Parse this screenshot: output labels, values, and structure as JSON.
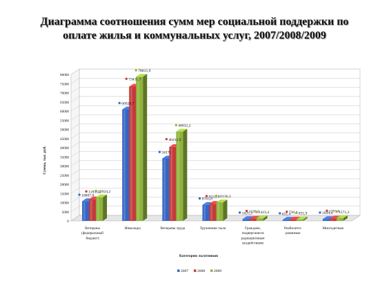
{
  "page": {
    "title_line1": "Диаграмма соотношения сумм мер социальной поддержки по",
    "title_line2": "оплате жилья и коммунальных услуг, 2007/2008/2009"
  },
  "chart_data": {
    "type": "bar",
    "title": "Диаграмма соотношения сумм мер социальной поддержки по оплате жилья и коммунальных услуг, 2007/2008/2009",
    "xlabel": "Категории льготников",
    "ylabel": "Сумма, тыс. руб.",
    "ylim": [
      0,
      80000
    ],
    "yticks": [
      "0",
      "5000",
      "10000",
      "15000",
      "20000",
      "25000",
      "30000",
      "35000",
      "40000",
      "45000",
      "50000",
      "55000",
      "60000",
      "65000",
      "70000",
      "75000",
      "80000"
    ],
    "grid": true,
    "legend_position": "bottom",
    "style": "3d clustered column",
    "categories": [
      [
        "Ветераны",
        "(федеральный",
        "бюджет)"
      ],
      [
        "Инвалиды"
      ],
      [
        "Ветераны труда"
      ],
      [
        "Труженики тыла"
      ],
      [
        "Граждане,",
        "подвергшиеся",
        "радиационным",
        "воздействиям"
      ],
      [
        "Реабилити-",
        "рованные"
      ],
      [
        "Многодетные"
      ]
    ],
    "series": [
      {
        "name": "2007",
        "color": "#3566c4",
        "values": [
          10807.8,
          60926.7,
          34171,
          8783.8,
          1025.3,
          651.4,
          1039.4
        ],
        "labels": [
          "10807,8",
          "60926,7",
          "34171",
          "8783,8",
          "1025,3",
          "651,4",
          "1039,4"
        ]
      },
      {
        "name": "2008",
        "color": "#c43a3a",
        "values": [
          11836.2,
          73411.7,
          40412.9,
          9322.1,
          1195.2,
          736.4,
          1291.6
        ],
        "labels": [
          "11836,2",
          "73411,7",
          "40412,9",
          "9322,1",
          "1195,2",
          "736,4",
          "1291,6"
        ]
      },
      {
        "name": "2009",
        "color": "#8fb43c",
        "values": [
          12924.2,
          78815.9,
          48832.2,
          10136.3,
          1423.4,
          855.9,
          1571.3
        ],
        "labels": [
          "12924,2",
          "78815,9",
          "48832,2",
          "10136,3",
          "1423,4",
          "855,9",
          "1571,3"
        ]
      }
    ]
  }
}
